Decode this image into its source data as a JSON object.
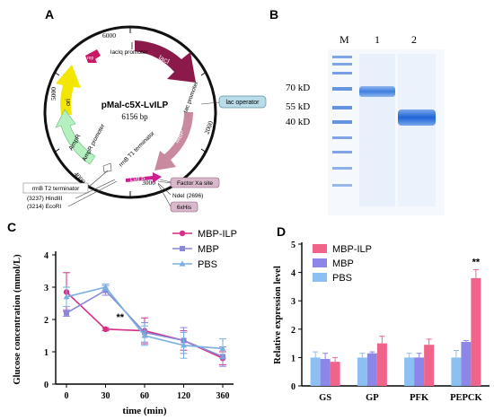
{
  "panels": {
    "A": "A",
    "B": "B",
    "C": "C",
    "D": "D"
  },
  "plasmid": {
    "name": "pMal-c5X-LvILP",
    "size": "6156 bp",
    "ticks": [
      "6000",
      "5000",
      "4000",
      "3000",
      "2000"
    ],
    "features": {
      "lacI": "lacI",
      "lacIq_promoter": "lacIq promoter",
      "rop": "rop",
      "ori": "ori",
      "ampR_promoter": "AmpR promoter",
      "ampR": "AmpR",
      "rrnB_T1": "rrnB T1 terminator",
      "lvilp": "LvILP",
      "mbp": "MBP",
      "tac_promoter": "tac promoter"
    },
    "callouts": {
      "lac_operator": "lac operator",
      "factor_xa": "Factor Xa site",
      "ndei": "NdeI (2696)",
      "his": "6xHis",
      "rrnB_T2": "rrnB T2 terminator",
      "hindiii": "(3237) HindIII",
      "ecori": "(3214) EcoRI"
    }
  },
  "gel": {
    "lane_labels": [
      "M",
      "1",
      "2"
    ],
    "markers": [
      "70 kD",
      "55 kD",
      "40 kD"
    ]
  },
  "chart_data": [
    {
      "type": "line",
      "panel": "C",
      "x_categories": [
        "0",
        "30",
        "60",
        "120",
        "360"
      ],
      "xlabel": "time (min)",
      "ylabel": "Glucose concentration (mmol/L)",
      "ylim": [
        0,
        4
      ],
      "yticks": [
        "0",
        "1",
        "2",
        "3",
        "4"
      ],
      "legend_position": "top-right",
      "series": [
        {
          "name": "MBP-ILP",
          "color": "#d62f86",
          "marker": "circle",
          "values": [
            2.85,
            1.7,
            1.65,
            1.35,
            0.8
          ],
          "errors": [
            0.6,
            0.05,
            0.4,
            0.3,
            0.2
          ]
        },
        {
          "name": "MBP",
          "color": "#8a86d8",
          "marker": "square",
          "values": [
            2.2,
            2.9,
            1.6,
            1.35,
            0.85
          ],
          "errors": [
            0.1,
            0.15,
            0.3,
            0.4,
            0.3
          ]
        },
        {
          "name": "PBS",
          "color": "#7ab0e0",
          "marker": "triangle",
          "values": [
            2.7,
            3.0,
            1.5,
            1.2,
            1.1
          ],
          "errors": [
            0.3,
            0.1,
            0.3,
            0.4,
            0.3
          ]
        }
      ],
      "annotations": [
        {
          "x": "30",
          "text": "**"
        }
      ]
    },
    {
      "type": "bar",
      "panel": "D",
      "categories": [
        "GS",
        "GP",
        "PFK",
        "PEPCK"
      ],
      "ylabel": "Relative expression level",
      "ylim": [
        0,
        5
      ],
      "yticks": [
        "0",
        "1",
        "2",
        "3",
        "4",
        "5"
      ],
      "legend_position": "top-left",
      "series": [
        {
          "name": "MBP-ILP",
          "color": "#f0648c",
          "values": [
            0.85,
            1.5,
            1.45,
            3.8
          ],
          "errors": [
            0.15,
            0.25,
            0.2,
            0.3
          ]
        },
        {
          "name": "MBP",
          "color": "#8c86e8",
          "values": [
            0.95,
            1.15,
            1.0,
            1.55
          ],
          "errors": [
            0.2,
            0.05,
            0.15,
            0.05
          ]
        },
        {
          "name": "PBS",
          "color": "#8cc0f2",
          "values": [
            1.0,
            1.0,
            1.0,
            1.0
          ],
          "errors": [
            0.2,
            0.15,
            0.15,
            0.25
          ]
        }
      ],
      "annotations": [
        {
          "category": "PEPCK",
          "text": "**"
        }
      ]
    }
  ]
}
